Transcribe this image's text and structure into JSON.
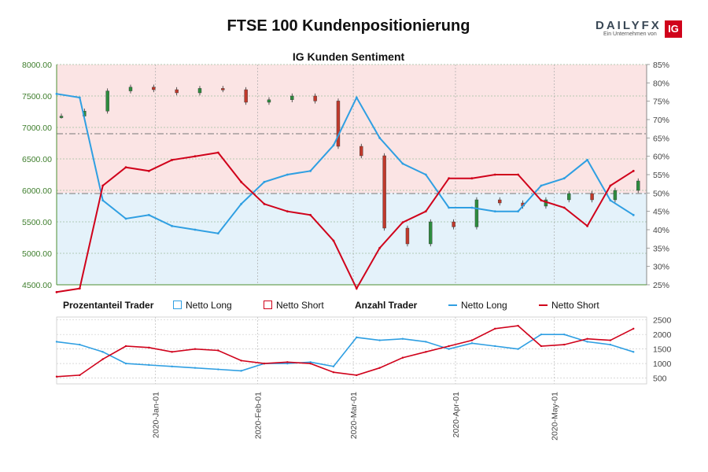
{
  "title": "FTSE 100 Kundenpositionierung",
  "brand": {
    "name_part1": "DAILY",
    "name_part2": "FX",
    "tagline": "Ein Unternehmen von",
    "badge": "IG"
  },
  "legend": {
    "group1": "Prozentanteil Trader",
    "group2": "Anzahl Trader",
    "net_long": "Netto Long",
    "net_short": "Netto Short"
  },
  "colors": {
    "long": "#2f9fe2",
    "short": "#d0021b",
    "up_candle": "#2e8b3e",
    "down_candle": "#c0392b",
    "top_bg": "#fbe4e4",
    "bottom_bg": "#e4f2fa"
  },
  "chart_data": [
    {
      "type": "candlestick",
      "title": "IG Kunden Sentiment",
      "ylim": [
        4500,
        8000
      ],
      "y_ticks": [
        "4500.00",
        "5000.00",
        "5500.00",
        "6000.00",
        "6500.00",
        "7000.00",
        "7500.00",
        "8000.00"
      ],
      "y2lim": [
        25,
        85
      ],
      "y2_ticks": [
        "25%",
        "30%",
        "35%",
        "40%",
        "45%",
        "50%",
        "55%",
        "60%",
        "65%",
        "70%",
        "75%",
        "80%",
        "85%"
      ],
      "x": [
        "2019-12-02",
        "2019-12-09",
        "2019-12-16",
        "2019-12-23",
        "2019-12-30",
        "2020-01-06",
        "2020-01-13",
        "2020-01-20",
        "2020-01-27",
        "2020-02-03",
        "2020-02-10",
        "2020-02-17",
        "2020-02-24",
        "2020-03-02",
        "2020-03-09",
        "2020-03-16",
        "2020-03-23",
        "2020-03-30",
        "2020-04-06",
        "2020-04-13",
        "2020-04-20",
        "2020-04-27",
        "2020-05-04",
        "2020-05-11",
        "2020-05-18",
        "2020-05-25"
      ],
      "close": [
        7180,
        7260,
        7580,
        7640,
        7600,
        7550,
        7620,
        7600,
        7400,
        7440,
        7500,
        7420,
        6700,
        6550,
        5400,
        5150,
        5500,
        5420,
        5850,
        5800,
        5750,
        5850,
        5950,
        5850,
        6000,
        6150
      ],
      "series": [
        {
          "name": "Netto Long",
          "values": [
            77,
            76,
            48,
            43,
            44,
            41,
            40,
            39,
            47,
            53,
            55,
            56,
            63,
            76,
            65,
            58,
            55,
            46,
            46,
            45,
            45,
            52,
            54,
            59,
            48,
            44
          ]
        },
        {
          "name": "Netto Short",
          "values": [
            23,
            24,
            52,
            57,
            56,
            59,
            60,
            61,
            53,
            47,
            45,
            44,
            37,
            24,
            35,
            42,
            45,
            54,
            54,
            55,
            55,
            48,
            46,
            41,
            52,
            56
          ]
        }
      ],
      "reference_lines": [
        6900,
        5950
      ]
    },
    {
      "type": "line",
      "ylim": [
        300,
        2600
      ],
      "y_ticks": [
        "500",
        "1000",
        "1500",
        "2000",
        "2500"
      ],
      "x_ticks": [
        "2020-Jan-01",
        "2020-Feb-01",
        "2020-Mar-01",
        "2020-Apr-01",
        "2020-May-01"
      ],
      "x_tick_dates": [
        "2020-01-01",
        "2020-02-01",
        "2020-03-01",
        "2020-04-01",
        "2020-05-01"
      ],
      "series": [
        {
          "name": "Netto Long",
          "values": [
            1750,
            1650,
            1400,
            1000,
            950,
            900,
            850,
            800,
            750,
            1000,
            1000,
            1050,
            900,
            1900,
            1800,
            1850,
            1750,
            1500,
            1700,
            1600,
            1500,
            2000,
            2000,
            1750,
            1650,
            1400
          ]
        },
        {
          "name": "Netto Short",
          "values": [
            550,
            600,
            1150,
            1600,
            1550,
            1400,
            1500,
            1450,
            1100,
            1000,
            1050,
            1000,
            700,
            600,
            850,
            1200,
            1400,
            1600,
            1800,
            2200,
            2300,
            1600,
            1650,
            1850,
            1800,
            2200
          ]
        }
      ]
    }
  ]
}
